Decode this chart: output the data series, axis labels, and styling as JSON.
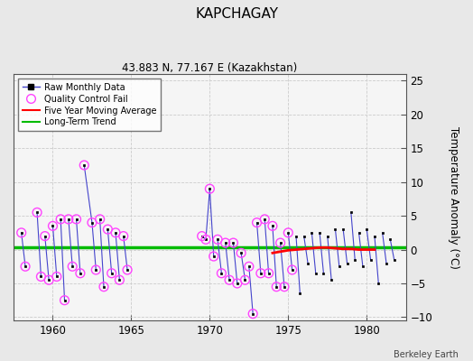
{
  "title": "KAPCHAGAY",
  "subtitle": "43.883 N, 77.167 E (Kazakhstan)",
  "ylabel": "Temperature Anomaly (°C)",
  "credit": "Berkeley Earth",
  "xlim": [
    1957.5,
    1982.5
  ],
  "ylim": [
    -10.5,
    26
  ],
  "yticks": [
    -10,
    -5,
    0,
    5,
    10,
    15,
    20,
    25
  ],
  "xticks": [
    1960,
    1965,
    1970,
    1975,
    1980
  ],
  "bg_color": "#e8e8e8",
  "plot_bg_color": "#f5f5f5",
  "raw_line_color": "#4444cc",
  "raw_marker_color": "#000000",
  "qc_color": "#ff44ff",
  "ma_color": "#ff0000",
  "trend_color": "#00bb00",
  "raw_data": [
    [
      1958.0,
      2.5
    ],
    [
      1958.25,
      -2.5
    ],
    [
      1959.0,
      5.5
    ],
    [
      1959.25,
      -4.0
    ],
    [
      1959.5,
      2.0
    ],
    [
      1959.75,
      -4.5
    ],
    [
      1960.0,
      3.5
    ],
    [
      1960.25,
      -4.0
    ],
    [
      1960.5,
      4.5
    ],
    [
      1960.75,
      -7.5
    ],
    [
      1961.0,
      4.5
    ],
    [
      1961.25,
      -2.5
    ],
    [
      1961.5,
      4.5
    ],
    [
      1961.75,
      -3.5
    ],
    [
      1962.0,
      12.5
    ],
    [
      1962.5,
      4.0
    ],
    [
      1962.75,
      -3.0
    ],
    [
      1963.0,
      4.5
    ],
    [
      1963.25,
      -5.5
    ],
    [
      1963.5,
      3.0
    ],
    [
      1963.75,
      -3.5
    ],
    [
      1964.0,
      2.5
    ],
    [
      1964.25,
      -4.5
    ],
    [
      1964.5,
      2.0
    ],
    [
      1964.75,
      -3.0
    ],
    [
      1969.5,
      2.0
    ],
    [
      1969.75,
      1.5
    ],
    [
      1970.0,
      9.0
    ],
    [
      1970.25,
      -1.0
    ],
    [
      1970.5,
      1.5
    ],
    [
      1970.75,
      -3.5
    ],
    [
      1971.0,
      1.0
    ],
    [
      1971.25,
      -4.5
    ],
    [
      1971.5,
      1.0
    ],
    [
      1971.75,
      -5.0
    ],
    [
      1972.0,
      -0.5
    ],
    [
      1972.25,
      -4.5
    ],
    [
      1972.5,
      -2.5
    ],
    [
      1972.75,
      -9.5
    ],
    [
      1973.0,
      4.0
    ],
    [
      1973.25,
      -3.5
    ],
    [
      1973.5,
      4.5
    ],
    [
      1973.75,
      -3.5
    ],
    [
      1974.0,
      3.5
    ],
    [
      1974.25,
      -5.5
    ],
    [
      1974.5,
      1.0
    ],
    [
      1974.75,
      -5.5
    ],
    [
      1975.0,
      2.5
    ],
    [
      1975.25,
      -3.0
    ],
    [
      1975.5,
      2.0
    ],
    [
      1975.75,
      -6.5
    ],
    [
      1976.0,
      2.0
    ],
    [
      1976.25,
      -2.0
    ],
    [
      1976.5,
      2.5
    ],
    [
      1976.75,
      -3.5
    ],
    [
      1977.0,
      2.5
    ],
    [
      1977.25,
      -3.5
    ],
    [
      1977.5,
      2.0
    ],
    [
      1977.75,
      -4.5
    ],
    [
      1978.0,
      3.0
    ],
    [
      1978.25,
      -2.5
    ],
    [
      1978.5,
      3.0
    ],
    [
      1978.75,
      -2.0
    ],
    [
      1979.0,
      5.5
    ],
    [
      1979.25,
      -1.5
    ],
    [
      1979.5,
      2.5
    ],
    [
      1979.75,
      -2.5
    ],
    [
      1980.0,
      3.0
    ],
    [
      1980.25,
      -1.5
    ],
    [
      1980.5,
      2.0
    ],
    [
      1980.75,
      -5.0
    ],
    [
      1981.0,
      2.5
    ],
    [
      1981.25,
      -2.0
    ],
    [
      1981.5,
      1.5
    ],
    [
      1981.75,
      -1.5
    ]
  ],
  "segments": [
    [
      [
        1958.0,
        2.5
      ],
      [
        1958.25,
        -2.5
      ]
    ],
    [
      [
        1959.0,
        5.5
      ],
      [
        1959.25,
        -4.0
      ]
    ],
    [
      [
        1959.5,
        2.0
      ],
      [
        1959.75,
        -4.5
      ]
    ],
    [
      [
        1960.0,
        3.5
      ],
      [
        1960.25,
        -4.0
      ]
    ],
    [
      [
        1960.5,
        4.5
      ],
      [
        1960.75,
        -7.5
      ]
    ],
    [
      [
        1961.0,
        4.5
      ],
      [
        1961.25,
        -2.5
      ]
    ],
    [
      [
        1961.5,
        4.5
      ],
      [
        1961.75,
        -3.5
      ]
    ],
    [
      [
        1962.0,
        12.5
      ],
      [
        1962.5,
        4.0
      ],
      [
        1962.75,
        -3.0
      ]
    ],
    [
      [
        1963.0,
        4.5
      ],
      [
        1963.25,
        -5.5
      ]
    ],
    [
      [
        1963.5,
        3.0
      ],
      [
        1963.75,
        -3.5
      ]
    ],
    [
      [
        1964.0,
        2.5
      ],
      [
        1964.25,
        -4.5
      ]
    ],
    [
      [
        1964.5,
        2.0
      ],
      [
        1964.75,
        -3.0
      ]
    ],
    [
      [
        1969.5,
        2.0
      ],
      [
        1969.75,
        1.5
      ],
      [
        1970.0,
        9.0
      ],
      [
        1970.25,
        -1.0
      ]
    ],
    [
      [
        1970.5,
        1.5
      ],
      [
        1970.75,
        -3.5
      ]
    ],
    [
      [
        1971.0,
        1.0
      ],
      [
        1971.25,
        -4.5
      ]
    ],
    [
      [
        1971.5,
        1.0
      ],
      [
        1971.75,
        -5.0
      ]
    ],
    [
      [
        1972.0,
        -0.5
      ],
      [
        1972.25,
        -4.5
      ]
    ],
    [
      [
        1972.5,
        -2.5
      ],
      [
        1972.75,
        -9.5
      ]
    ],
    [
      [
        1973.0,
        4.0
      ],
      [
        1973.25,
        -3.5
      ]
    ],
    [
      [
        1973.5,
        4.5
      ],
      [
        1973.75,
        -3.5
      ]
    ],
    [
      [
        1974.0,
        3.5
      ],
      [
        1974.25,
        -5.5
      ]
    ],
    [
      [
        1974.5,
        1.0
      ],
      [
        1974.75,
        -5.5
      ]
    ],
    [
      [
        1975.0,
        2.5
      ],
      [
        1975.25,
        -3.0
      ]
    ],
    [
      [
        1975.5,
        2.0
      ],
      [
        1975.75,
        -6.5
      ]
    ],
    [
      [
        1976.0,
        2.0
      ],
      [
        1976.25,
        -2.0
      ]
    ],
    [
      [
        1976.5,
        2.5
      ],
      [
        1976.75,
        -3.5
      ]
    ],
    [
      [
        1977.0,
        2.5
      ],
      [
        1977.25,
        -3.5
      ]
    ],
    [
      [
        1977.5,
        2.0
      ],
      [
        1977.75,
        -4.5
      ]
    ],
    [
      [
        1978.0,
        3.0
      ],
      [
        1978.25,
        -2.5
      ]
    ],
    [
      [
        1978.5,
        3.0
      ],
      [
        1978.75,
        -2.0
      ]
    ],
    [
      [
        1979.0,
        5.5
      ],
      [
        1979.25,
        -1.5
      ]
    ],
    [
      [
        1979.5,
        2.5
      ],
      [
        1979.75,
        -2.5
      ]
    ],
    [
      [
        1980.0,
        3.0
      ],
      [
        1980.25,
        -1.5
      ]
    ],
    [
      [
        1980.5,
        2.0
      ],
      [
        1980.75,
        -5.0
      ]
    ],
    [
      [
        1981.0,
        2.5
      ],
      [
        1981.25,
        -2.0
      ]
    ],
    [
      [
        1981.5,
        1.5
      ],
      [
        1981.75,
        -1.5
      ]
    ]
  ],
  "qc_fail_x": [
    1958.0,
    1958.25,
    1959.0,
    1959.25,
    1959.5,
    1959.75,
    1960.0,
    1960.25,
    1960.5,
    1960.75,
    1961.0,
    1961.25,
    1961.5,
    1961.75,
    1962.0,
    1962.5,
    1962.75,
    1963.0,
    1963.25,
    1963.5,
    1963.75,
    1964.0,
    1964.25,
    1964.5,
    1964.75,
    1969.5,
    1969.75,
    1970.0,
    1970.25,
    1970.5,
    1970.75,
    1971.0,
    1971.25,
    1971.5,
    1971.75,
    1972.0,
    1972.25,
    1972.5,
    1972.75,
    1973.0,
    1973.25,
    1973.5,
    1973.75,
    1974.0,
    1974.25,
    1974.5,
    1974.75,
    1975.0,
    1975.25
  ],
  "qc_fail_y": [
    2.5,
    -2.5,
    5.5,
    -4.0,
    2.0,
    -4.5,
    3.5,
    -4.0,
    4.5,
    -7.5,
    4.5,
    -2.5,
    4.5,
    -3.5,
    12.5,
    4.0,
    -3.0,
    4.5,
    -5.5,
    3.0,
    -3.5,
    2.5,
    -4.5,
    2.0,
    -3.0,
    2.0,
    1.5,
    9.0,
    -1.0,
    1.5,
    -3.5,
    1.0,
    -4.5,
    1.0,
    -5.0,
    -0.5,
    -4.5,
    -2.5,
    -9.5,
    4.0,
    -3.5,
    4.5,
    -3.5,
    3.5,
    -5.5,
    1.0,
    -5.5,
    2.5,
    -3.0
  ],
  "moving_avg_x": [
    1974.0,
    1974.5,
    1975.0,
    1975.5,
    1976.0,
    1976.5,
    1977.0,
    1977.5,
    1978.0,
    1978.5,
    1979.0,
    1979.5,
    1980.0,
    1980.5
  ],
  "moving_avg_y": [
    -0.5,
    -0.3,
    -0.1,
    0.0,
    0.1,
    0.2,
    0.3,
    0.3,
    0.2,
    0.1,
    0.1,
    0.0,
    0.0,
    0.0
  ],
  "trend_x": [
    1957.5,
    1982.5
  ],
  "trend_y": [
    0.3,
    0.3
  ]
}
